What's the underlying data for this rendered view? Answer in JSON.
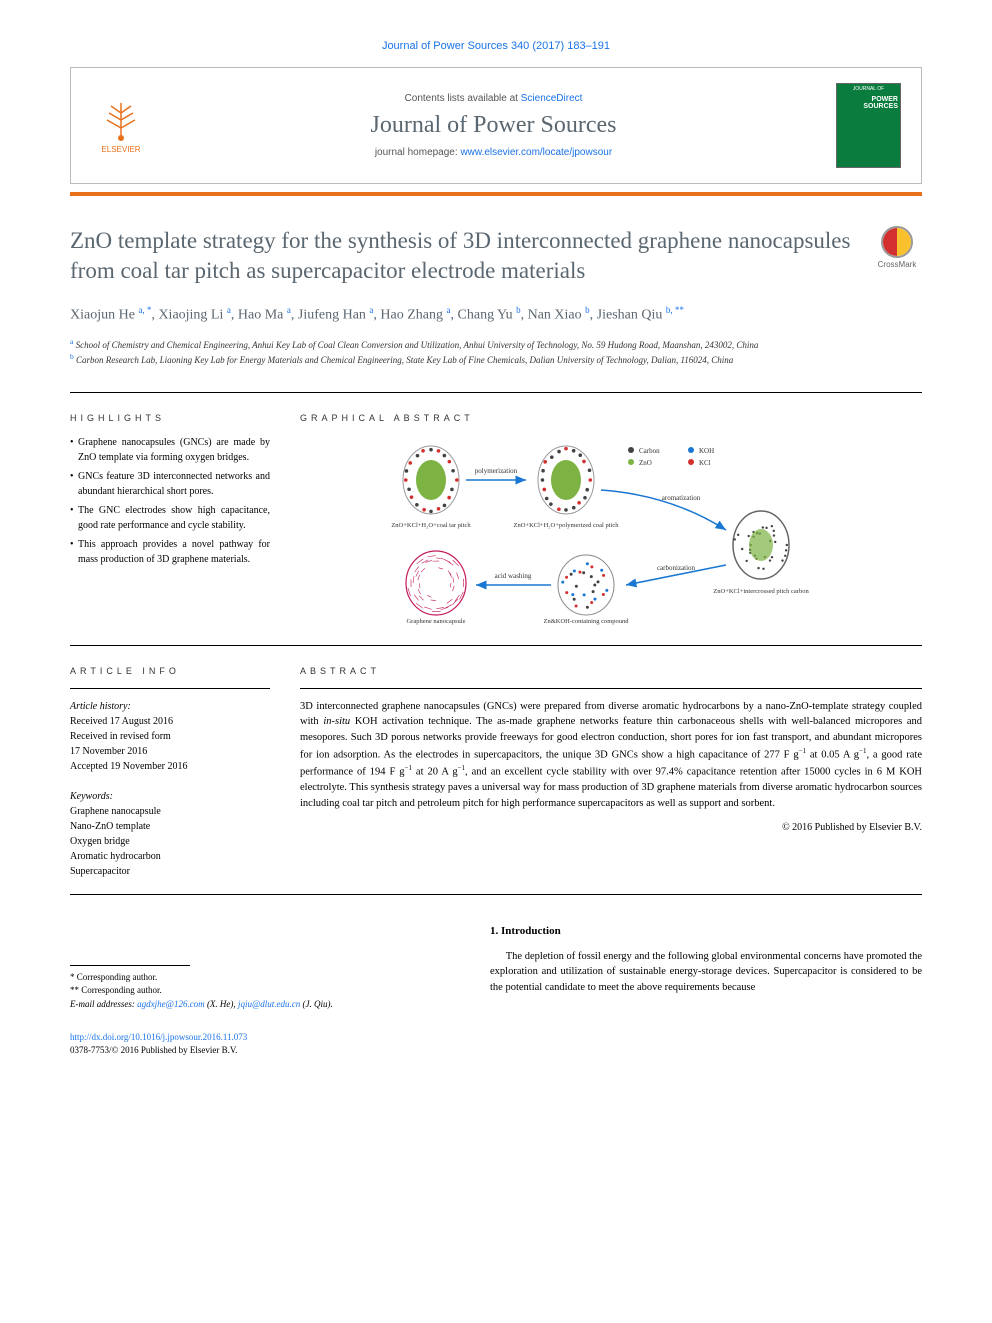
{
  "citation": "Journal of Power Sources 340 (2017) 183–191",
  "header": {
    "contents_prefix": "Contents lists available at ",
    "contents_link": "ScienceDirect",
    "journal_name": "Journal of Power Sources",
    "homepage_prefix": "journal homepage: ",
    "homepage_url": "www.elsevier.com/locate/jpowsour",
    "publisher": "ELSEVIER",
    "cover_top": "JOURNAL OF",
    "cover_label": "POWER SOURCES"
  },
  "crossmark": "CrossMark",
  "title": "ZnO template strategy for the synthesis of 3D interconnected graphene nanocapsules from coal tar pitch as supercapacitor electrode materials",
  "authors_html": "Xiaojun He <sup>a, *</sup>, Xiaojing Li <sup>a</sup>, Hao Ma <sup>a</sup>, Jiufeng Han <sup>a</sup>, Hao Zhang <sup>a</sup>, Chang Yu <sup>b</sup>, Nan Xiao <sup>b</sup>, Jieshan Qiu <sup>b, **</sup>",
  "affiliations": [
    {
      "sup": "a",
      "text": " School of Chemistry and Chemical Engineering, Anhui Key Lab of Coal Clean Conversion and Utilization, Anhui University of Technology, No. 59 Hudong Road, Maanshan, 243002, China"
    },
    {
      "sup": "b",
      "text": " Carbon Research Lab, Liaoning Key Lab for Energy Materials and Chemical Engineering, State Key Lab of Fine Chemicals, Dalian University of Technology, Dalian, 116024, China"
    }
  ],
  "highlights": {
    "label": "HIGHLIGHTS",
    "items": [
      "Graphene nanocapsules (GNCs) are made by ZnO template via forming oxygen bridges.",
      "GNCs feature 3D interconnected networks and abundant hierarchical short pores.",
      "The GNC electrodes show high capacitance, good rate performance and cycle stability.",
      "This approach provides a novel pathway for mass production of 3D graphene materials."
    ]
  },
  "graphical_abstract": {
    "label": "GRAPHICAL ABSTRACT",
    "stages": {
      "s1": "ZnO+KCl+H₂O+coal tar pitch",
      "s2": "ZnO+KCl+H₂O+polymerized coal pitch",
      "s3": "ZnO+KCl+intercrossed pitch carbon",
      "s4": "Zn&KOH-containing compound",
      "s5": "Graphene nanocapsule",
      "arrow1": "polymerization",
      "arrow2": "aromatization",
      "arrow3": "carbonization",
      "arrow4": "acid washing"
    },
    "legend": {
      "carbon": "Carbon",
      "zno": "ZnO",
      "koh": "KOH",
      "kcl": "KCl"
    },
    "colors": {
      "zno_core": "#7cb342",
      "kcl": "#d32f2f",
      "carbon": "#424242",
      "koh": "#1976d2",
      "graphene": "#c2185b",
      "arrow": "#1976d2"
    }
  },
  "article_info": {
    "label": "ARTICLE INFO",
    "history_label": "Article history:",
    "history": [
      "Received 17 August 2016",
      "Received in revised form",
      "17 November 2016",
      "Accepted 19 November 2016"
    ],
    "keywords_label": "Keywords:",
    "keywords": [
      "Graphene nanocapsule",
      "Nano-ZnO template",
      "Oxygen bridge",
      "Aromatic hydrocarbon",
      "Supercapacitor"
    ]
  },
  "abstract": {
    "label": "ABSTRACT",
    "text": "3D interconnected graphene nanocapsules (GNCs) were prepared from diverse aromatic hydrocarbons by a nano-ZnO-template strategy coupled with in-situ KOH activation technique. The as-made graphene networks feature thin carbonaceous shells with well-balanced micropores and mesopores. Such 3D porous networks provide freeways for good electron conduction, short pores for ion fast transport, and abundant micropores for ion adsorption. As the electrodes in supercapacitors, the unique 3D GNCs show a high capacitance of 277 F g⁻¹ at 0.05 A g⁻¹, a good rate performance of 194 F g⁻¹ at 20 A g⁻¹, and an excellent cycle stability with over 97.4% capacitance retention after 15000 cycles in 6 M KOH electrolyte. This synthesis strategy paves a universal way for mass production of 3D graphene materials from diverse aromatic hydrocarbon sources including coal tar pitch and petroleum pitch for high performance supercapacitors as well as support and sorbent.",
    "copyright": "© 2016 Published by Elsevier B.V."
  },
  "introduction": {
    "heading": "1.  Introduction",
    "text": "The depletion of fossil energy and the following global environmental concerns have promoted the exploration and utilization of sustainable energy-storage devices. Supercapacitor is considered to be the potential candidate to meet the above requirements because"
  },
  "footer": {
    "corr1": "* Corresponding author.",
    "corr2": "** Corresponding author.",
    "email_label": "E-mail addresses: ",
    "email1": "agdxjhe@126.com",
    "email1_name": " (X. He), ",
    "email2": "jqiu@dlut.edu.cn",
    "email2_name": " (J. Qiu).",
    "doi": "http://dx.doi.org/10.1016/j.jpowsour.2016.11.073",
    "issn": "0378-7753/© 2016 Published by Elsevier B.V."
  }
}
